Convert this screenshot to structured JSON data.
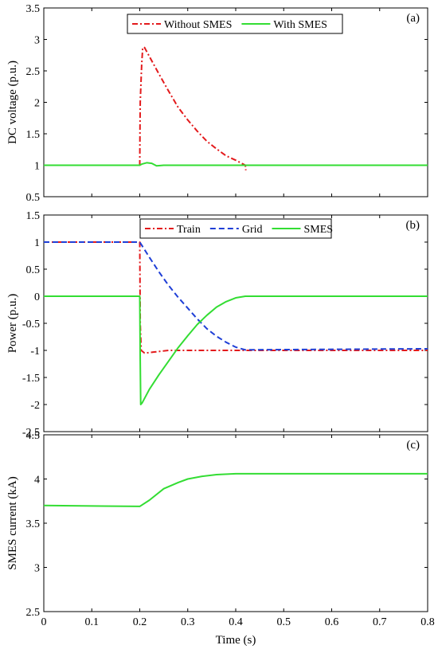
{
  "xlabel": "Time (s)",
  "x_ticks": [
    "0",
    "0.1",
    "0.2",
    "0.3",
    "0.4",
    "0.5",
    "0.6",
    "0.7",
    "0.8"
  ],
  "chart_data": [
    {
      "type": "line",
      "panel_label": "(a)",
      "title": "",
      "xlabel": "Time (s)",
      "ylabel": "DC voltage (p.u.)",
      "xlim": [
        0,
        0.8
      ],
      "ylim": [
        0.5,
        3.5
      ],
      "y_ticks": [
        "0.5",
        "1",
        "1.5",
        "2",
        "2.5",
        "3",
        "3.5"
      ],
      "legend_position": "top-center",
      "series": [
        {
          "name": "Without SMES",
          "color": "#e31a1c",
          "style": "dashdot",
          "points": [
            [
              0,
              1.0
            ],
            [
              0.2,
              1.0
            ],
            [
              0.2005,
              1.6
            ],
            [
              0.201,
              2.0
            ],
            [
              0.202,
              2.2
            ],
            [
              0.204,
              2.6
            ],
            [
              0.206,
              2.85
            ],
            [
              0.208,
              2.88
            ],
            [
              0.21,
              2.87
            ],
            [
              0.22,
              2.73
            ],
            [
              0.24,
              2.45
            ],
            [
              0.26,
              2.18
            ],
            [
              0.28,
              1.92
            ],
            [
              0.3,
              1.72
            ],
            [
              0.32,
              1.54
            ],
            [
              0.34,
              1.38
            ],
            [
              0.36,
              1.26
            ],
            [
              0.38,
              1.15
            ],
            [
              0.4,
              1.08
            ],
            [
              0.415,
              1.02
            ],
            [
              0.42,
              1.0
            ],
            [
              0.421,
              0.92
            ]
          ]
        },
        {
          "name": "With SMES",
          "color": "#33dd33",
          "style": "solid",
          "points": [
            [
              0,
              1.0
            ],
            [
              0.2,
              1.0
            ],
            [
              0.205,
              1.02
            ],
            [
              0.215,
              1.04
            ],
            [
              0.225,
              1.03
            ],
            [
              0.235,
              0.99
            ],
            [
              0.25,
              1.0
            ],
            [
              0.8,
              1.0
            ]
          ]
        }
      ]
    },
    {
      "type": "line",
      "panel_label": "(b)",
      "title": "",
      "xlabel": "Time (s)",
      "ylabel": "Power (p.u.)",
      "xlim": [
        0,
        0.8
      ],
      "ylim": [
        -2.5,
        1.5
      ],
      "y_ticks": [
        "-2.5",
        "-2",
        "-1.5",
        "-1",
        "-0.5",
        "0",
        "0.5",
        "1",
        "1.5"
      ],
      "legend_position": "top-center",
      "series": [
        {
          "name": "Train",
          "color": "#e31a1c",
          "style": "dashdot",
          "points": [
            [
              0,
              1.0
            ],
            [
              0.2,
              1.0
            ],
            [
              0.201,
              -0.5
            ],
            [
              0.203,
              -1.0
            ],
            [
              0.21,
              -1.05
            ],
            [
              0.23,
              -1.03
            ],
            [
              0.26,
              -1.0
            ],
            [
              0.8,
              -1.0
            ]
          ]
        },
        {
          "name": "Grid",
          "color": "#1f3fd6",
          "style": "dashed",
          "points": [
            [
              0,
              1.0
            ],
            [
              0.2,
              1.0
            ],
            [
              0.22,
              0.72
            ],
            [
              0.24,
              0.45
            ],
            [
              0.26,
              0.2
            ],
            [
              0.28,
              -0.02
            ],
            [
              0.3,
              -0.22
            ],
            [
              0.32,
              -0.42
            ],
            [
              0.34,
              -0.6
            ],
            [
              0.36,
              -0.74
            ],
            [
              0.38,
              -0.85
            ],
            [
              0.4,
              -0.94
            ],
            [
              0.42,
              -0.99
            ],
            [
              0.8,
              -0.97
            ]
          ]
        },
        {
          "name": "SMES",
          "color": "#33dd33",
          "style": "solid",
          "points": [
            [
              0,
              0.0
            ],
            [
              0.2,
              0.0
            ],
            [
              0.201,
              -1.2
            ],
            [
              0.202,
              -2.0
            ],
            [
              0.205,
              -1.97
            ],
            [
              0.22,
              -1.72
            ],
            [
              0.24,
              -1.45
            ],
            [
              0.26,
              -1.2
            ],
            [
              0.28,
              -0.95
            ],
            [
              0.3,
              -0.73
            ],
            [
              0.32,
              -0.52
            ],
            [
              0.34,
              -0.35
            ],
            [
              0.36,
              -0.2
            ],
            [
              0.38,
              -0.1
            ],
            [
              0.4,
              -0.03
            ],
            [
              0.42,
              0.0
            ],
            [
              0.8,
              0.0
            ]
          ]
        }
      ]
    },
    {
      "type": "line",
      "panel_label": "(c)",
      "title": "",
      "xlabel": "Time (s)",
      "ylabel": "SMES current (kA)",
      "xlim": [
        0,
        0.8
      ],
      "ylim": [
        2.5,
        4.5
      ],
      "y_ticks": [
        "2.5",
        "3",
        "3.5",
        "4",
        "4.5"
      ],
      "series": [
        {
          "color": "#33dd33",
          "style": "solid",
          "points": [
            [
              0,
              3.7
            ],
            [
              0.2,
              3.69
            ],
            [
              0.22,
              3.76
            ],
            [
              0.25,
              3.89
            ],
            [
              0.28,
              3.96
            ],
            [
              0.3,
              4.0
            ],
            [
              0.33,
              4.03
            ],
            [
              0.36,
              4.05
            ],
            [
              0.4,
              4.06
            ],
            [
              0.8,
              4.06
            ]
          ]
        }
      ]
    }
  ]
}
